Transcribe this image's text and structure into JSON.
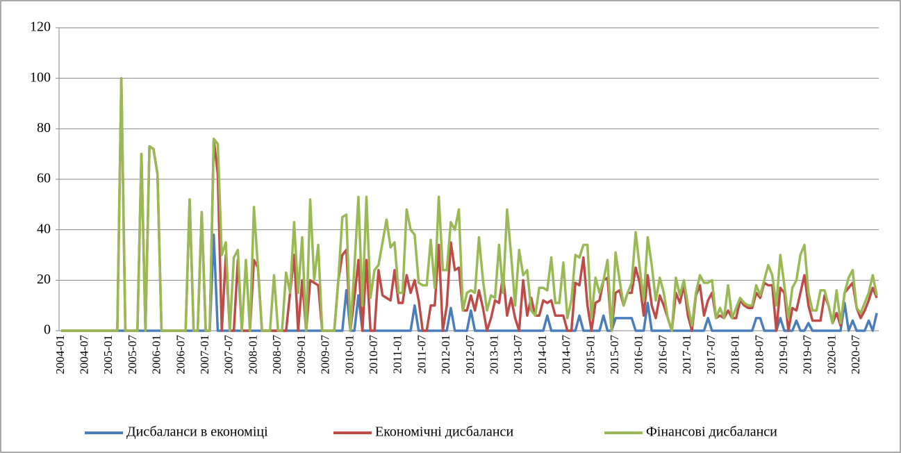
{
  "chart_data": {
    "type": "line",
    "categories": [
      "2004-01",
      null,
      null,
      null,
      null,
      null,
      "2004-07",
      null,
      null,
      null,
      null,
      null,
      "2005-01",
      null,
      null,
      null,
      null,
      null,
      "2005-07",
      null,
      null,
      null,
      null,
      null,
      "2006-01",
      null,
      null,
      null,
      null,
      null,
      "2006-07",
      null,
      null,
      null,
      null,
      null,
      "2007-01",
      null,
      null,
      null,
      null,
      null,
      "2007-07",
      null,
      null,
      null,
      null,
      null,
      "2008-01",
      null,
      null,
      null,
      null,
      null,
      "2008-07",
      null,
      null,
      null,
      null,
      null,
      "2009-01",
      null,
      null,
      null,
      null,
      null,
      "2009-07",
      null,
      null,
      null,
      null,
      null,
      "2010-01",
      null,
      null,
      null,
      null,
      null,
      "2010-07",
      null,
      null,
      null,
      null,
      null,
      "2011-01",
      null,
      null,
      null,
      null,
      null,
      "2011-07",
      null,
      null,
      null,
      null,
      null,
      "2012-01",
      null,
      null,
      null,
      null,
      null,
      "2012-07",
      null,
      null,
      null,
      null,
      null,
      "2013-01",
      null,
      null,
      null,
      null,
      null,
      "2013-07",
      null,
      null,
      null,
      null,
      null,
      "2014-01",
      null,
      null,
      null,
      null,
      null,
      "2014-07",
      null,
      null,
      null,
      null,
      null,
      "2015-01",
      null,
      null,
      null,
      null,
      null,
      "2015-07",
      null,
      null,
      null,
      null,
      null,
      "2016-01",
      null,
      null,
      null,
      null,
      null,
      "2016-07",
      null,
      null,
      null,
      null,
      null,
      "2017-01",
      null,
      null,
      null,
      null,
      null,
      "2017-07",
      null,
      null,
      null,
      null,
      null,
      "2018-01",
      null,
      null,
      null,
      null,
      null,
      "2018-07",
      null,
      null,
      null,
      null,
      null,
      "2019-01",
      null,
      null,
      null,
      null,
      null,
      "2019-07",
      null,
      null,
      null,
      null,
      null,
      "2020-01",
      null,
      null,
      null,
      null,
      null,
      "2020-07",
      null,
      null,
      null,
      null,
      null
    ],
    "series": [
      {
        "name": "Дисбаланси в економіці",
        "color": "#4a7ebb",
        "values": [
          0,
          0,
          0,
          0,
          0,
          0,
          0,
          0,
          0,
          0,
          0,
          0,
          0,
          0,
          0,
          0,
          0,
          0,
          0,
          0,
          0,
          0,
          0,
          0,
          0,
          0,
          0,
          0,
          0,
          0,
          0,
          0,
          0,
          0,
          0,
          0,
          0,
          0,
          38,
          0,
          0,
          0,
          0,
          0,
          0,
          0,
          0,
          0,
          0,
          0,
          0,
          0,
          0,
          0,
          0,
          0,
          0,
          0,
          0,
          0,
          0,
          0,
          0,
          0,
          0,
          0,
          0,
          0,
          0,
          0,
          0,
          16,
          0,
          0,
          14,
          0,
          0,
          0,
          0,
          0,
          0,
          0,
          0,
          0,
          0,
          0,
          0,
          0,
          10,
          0,
          0,
          0,
          0,
          0,
          0,
          0,
          0,
          9,
          0,
          0,
          0,
          0,
          8,
          0,
          0,
          0,
          0,
          0,
          0,
          0,
          0,
          0,
          0,
          0,
          0,
          0,
          0,
          0,
          0,
          0,
          0,
          6,
          0,
          0,
          0,
          0,
          0,
          0,
          0,
          6,
          0,
          0,
          0,
          0,
          0,
          6,
          0,
          0,
          5,
          5,
          5,
          5,
          5,
          0,
          0,
          0,
          11,
          0,
          0,
          0,
          0,
          0,
          0,
          0,
          0,
          0,
          0,
          0,
          0,
          0,
          0,
          5,
          0,
          0,
          0,
          0,
          0,
          0,
          0,
          0,
          0,
          0,
          0,
          5,
          5,
          0,
          0,
          0,
          0,
          5,
          0,
          0,
          0,
          4,
          0,
          0,
          3,
          0,
          0,
          0,
          0,
          0,
          0,
          0,
          0,
          11,
          0,
          4,
          0,
          0,
          0,
          4,
          0,
          7
        ]
      },
      {
        "name": "Економічні дисбаланси",
        "color": "#be4b48",
        "values": [
          0,
          0,
          0,
          0,
          0,
          0,
          0,
          0,
          0,
          0,
          0,
          0,
          0,
          0,
          0,
          100,
          0,
          0,
          0,
          0,
          70,
          0,
          73,
          72,
          62,
          0,
          0,
          0,
          0,
          0,
          0,
          0,
          52,
          0,
          0,
          47,
          0,
          0,
          76,
          62,
          0,
          30,
          0,
          0,
          28,
          0,
          0,
          0,
          28,
          25,
          0,
          0,
          0,
          0,
          0,
          0,
          0,
          15,
          30,
          0,
          20,
          0,
          20,
          19,
          18,
          0,
          0,
          0,
          0,
          20,
          30,
          32,
          0,
          13,
          28,
          0,
          28,
          0,
          0,
          24,
          14,
          13,
          12,
          24,
          11,
          11,
          22,
          15,
          20,
          12,
          0,
          0,
          10,
          10,
          34,
          0,
          10,
          35,
          24,
          25,
          8,
          8,
          14,
          8,
          16,
          9,
          0,
          5,
          12,
          11,
          22,
          6,
          13,
          5,
          0,
          20,
          6,
          13,
          6,
          6,
          12,
          11,
          12,
          6,
          6,
          6,
          0,
          0,
          19,
          18,
          29,
          10,
          0,
          11,
          12,
          20,
          21,
          0,
          15,
          16,
          10,
          15,
          15,
          25,
          19,
          6,
          22,
          10,
          5,
          14,
          10,
          5,
          0,
          15,
          11,
          18,
          6,
          0,
          14,
          18,
          6,
          12,
          15,
          5,
          6,
          5,
          8,
          5,
          5,
          12,
          10,
          9,
          9,
          15,
          13,
          19,
          18,
          18,
          0,
          17,
          15,
          0,
          9,
          8,
          15,
          22,
          10,
          4,
          4,
          4,
          14,
          10,
          3,
          7,
          2,
          15,
          17,
          19,
          9,
          5,
          8,
          12,
          17,
          13
        ]
      },
      {
        "name": "Фінансові дисбаланси",
        "color": "#98b954",
        "values": [
          0,
          0,
          0,
          0,
          0,
          0,
          0,
          0,
          0,
          0,
          0,
          0,
          0,
          0,
          0,
          100,
          0,
          0,
          0,
          0,
          70,
          0,
          73,
          72,
          62,
          0,
          0,
          0,
          0,
          0,
          0,
          0,
          52,
          0,
          0,
          47,
          0,
          0,
          76,
          74,
          30,
          35,
          0,
          29,
          32,
          0,
          28,
          0,
          49,
          25,
          0,
          0,
          0,
          22,
          0,
          0,
          23,
          15,
          43,
          15,
          37,
          0,
          52,
          20,
          34,
          0,
          0,
          0,
          0,
          20,
          45,
          46,
          0,
          25,
          53,
          10,
          53,
          13,
          24,
          26,
          35,
          44,
          33,
          35,
          15,
          15,
          48,
          40,
          38,
          19,
          18,
          18,
          36,
          17,
          53,
          24,
          24,
          43,
          40,
          48,
          8,
          15,
          16,
          15,
          37,
          20,
          8,
          14,
          13,
          34,
          15,
          48,
          30,
          10,
          32,
          22,
          24,
          8,
          6,
          17,
          17,
          16,
          29,
          11,
          11,
          27,
          5,
          12,
          30,
          29,
          34,
          34,
          5,
          21,
          15,
          20,
          28,
          0,
          31,
          20,
          10,
          15,
          19,
          39,
          25,
          12,
          37,
          26,
          12,
          21,
          15,
          5,
          0,
          21,
          14,
          20,
          10,
          2,
          15,
          22,
          19,
          19,
          20,
          5,
          9,
          5,
          18,
          5,
          9,
          13,
          11,
          10,
          10,
          18,
          14,
          20,
          26,
          22,
          10,
          30,
          18,
          5,
          17,
          20,
          30,
          34,
          15,
          8,
          8,
          16,
          16,
          10,
          3,
          16,
          3,
          15,
          21,
          24,
          9,
          7,
          11,
          15,
          22,
          14
        ]
      }
    ],
    "ylim": [
      0,
      120
    ],
    "yticks": [
      0,
      20,
      40,
      60,
      80,
      100,
      120
    ],
    "grid": true,
    "legend": "bottom"
  }
}
